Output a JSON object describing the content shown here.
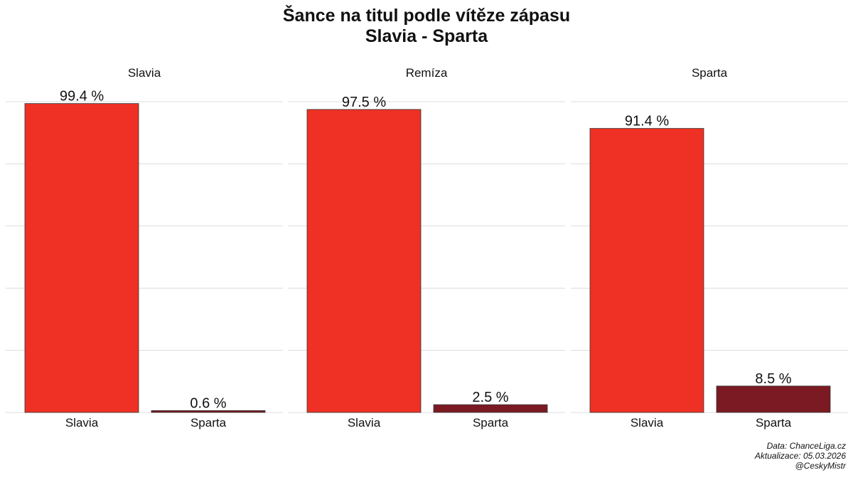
{
  "title": "Šance na titul podle vítěze zápasu",
  "subtitle": "Slavia - Sparta",
  "chart_data": {
    "type": "bar",
    "ylim": [
      0,
      100
    ],
    "grid": true,
    "categories": [
      "Slavia",
      "Sparta"
    ],
    "colors": {
      "Slavia": "#ee3124",
      "Sparta": "#7b1a22"
    },
    "value_suffix": " %",
    "panels": [
      {
        "title": "Slavia",
        "values": [
          99.4,
          0.6
        ]
      },
      {
        "title": "Remíza",
        "values": [
          97.5,
          2.5
        ]
      },
      {
        "title": "Sparta",
        "values": [
          91.4,
          8.5
        ]
      }
    ]
  },
  "caption": {
    "source": "Data: ChanceLiga.cz",
    "updated": "Aktualizace:  05.03.2026",
    "author": "@CeskyMistr"
  }
}
